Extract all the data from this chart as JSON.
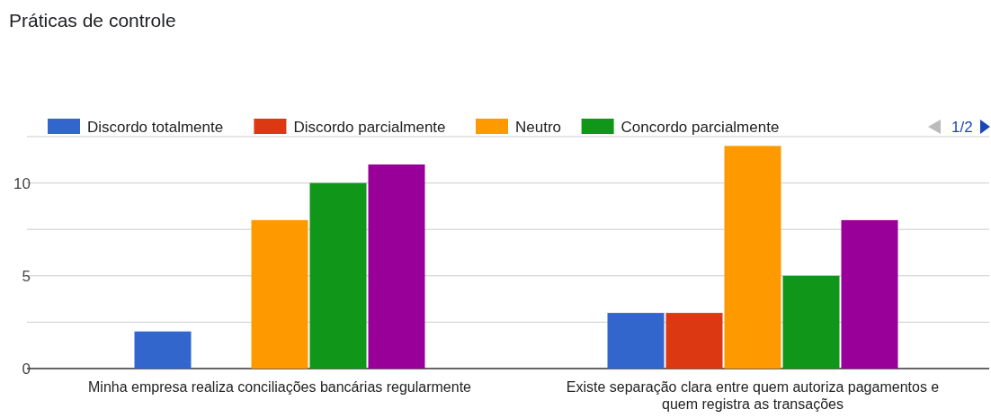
{
  "chart_data": {
    "type": "bar",
    "title": "Práticas de controle",
    "categories": [
      "Minha empresa realiza conciliações bancárias regularmente",
      "Existe separação clara entre quem autoriza pagamentos e quem registra as transações"
    ],
    "series": [
      {
        "name": "Discordo totalmente",
        "color": "#3366cc",
        "values": [
          2,
          3
        ]
      },
      {
        "name": "Discordo parcialmente",
        "color": "#dc3912",
        "values": [
          0,
          3
        ]
      },
      {
        "name": "Neutro",
        "color": "#ff9900",
        "values": [
          8,
          12
        ]
      },
      {
        "name": "Concordo parcialmente",
        "color": "#109618",
        "values": [
          10,
          5
        ]
      },
      {
        "color": "#990099",
        "values": [
          11,
          8
        ]
      }
    ],
    "ylim": [
      0,
      12.5
    ],
    "yticks": [
      0,
      {
        "value": 2.5,
        "label": null
      },
      5,
      {
        "value": 7.5,
        "label": null
      },
      10,
      {
        "value": 12.5,
        "label": null
      }
    ],
    "grid": "y",
    "legend": "top",
    "annotations": [
      "1/2"
    ]
  }
}
